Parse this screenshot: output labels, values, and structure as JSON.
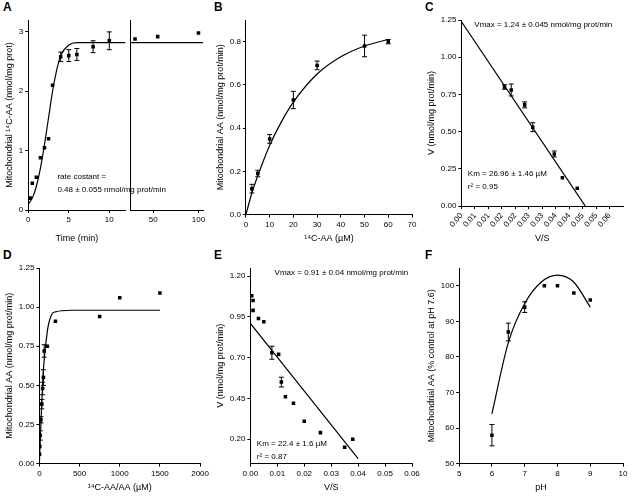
{
  "chart_data": [
    {
      "title": "A",
      "type": "scatter",
      "x_label": "Time (min)",
      "y_label": "Mitochondrial ¹⁴C-AA (nmol/mg prot)",
      "xlim": [
        0,
        12
      ],
      "xticks": [
        0,
        5,
        10
      ],
      "ylim": [
        0,
        3.2
      ],
      "yticks": [
        0,
        1,
        2,
        3
      ],
      "annotations": [
        "rate costant =",
        "0.48 ± 0.055 nmol/mg prot/min"
      ],
      "series": [
        {
          "type": "scatter",
          "marker": "square",
          "color": "#000000",
          "x": [
            0.25,
            0.5,
            1,
            1.5,
            2,
            2.5,
            3,
            4,
            5,
            6,
            8,
            10
          ],
          "values": [
            0.2,
            0.45,
            0.55,
            0.88,
            1.05,
            1.2,
            2.1,
            2.58,
            2.6,
            2.62,
            2.75,
            2.85
          ],
          "errors": [
            null,
            null,
            null,
            null,
            null,
            null,
            null,
            0.08,
            0.1,
            0.1,
            0.1,
            0.15
          ]
        },
        {
          "type": "line",
          "line_style": "solid",
          "color": "#000000",
          "x": [
            0,
            0.5,
            1,
            1.5,
            2,
            2.5,
            3,
            3.5,
            4,
            5,
            6,
            8,
            10,
            12
          ],
          "values": [
            0.1,
            0.2,
            0.4,
            0.7,
            1.1,
            1.55,
            2.0,
            2.35,
            2.6,
            2.78,
            2.82,
            2.82,
            2.82,
            2.82
          ]
        }
      ]
    },
    {
      "type": "scatter",
      "tick_labels": "x",
      "xlim": [
        25,
        105
      ],
      "xticks": [
        50,
        100
      ],
      "ylim": [
        0,
        3.2
      ],
      "series": [
        {
          "type": "scatter",
          "marker": "square",
          "color": "#000000",
          "x": [
            30,
            55,
            100
          ],
          "values": [
            2.88,
            2.92,
            2.98
          ]
        },
        {
          "type": "line",
          "line_style": "solid",
          "color": "#000000",
          "x": [
            25,
            105
          ],
          "values": [
            2.82,
            2.82
          ]
        }
      ]
    },
    {
      "title": "B",
      "type": "scatter",
      "x_label": "¹⁴C-AA (µM)",
      "y_label": "Mitochondrial AA (nmol/mg prot/min)",
      "xlim": [
        0,
        70
      ],
      "xticks": [
        0,
        10,
        20,
        30,
        40,
        50,
        60,
        70
      ],
      "ylim": [
        0,
        0.9
      ],
      "yticks": [
        {
          "value": 0,
          "label": "0.0"
        },
        0.2,
        0.4,
        0.6,
        0.8
      ],
      "series": [
        {
          "type": "scatter",
          "marker": "square",
          "color": "#000000",
          "x": [
            2.5,
            5,
            10,
            20,
            30,
            50,
            60
          ],
          "values": [
            0.12,
            0.19,
            0.35,
            0.53,
            0.69,
            0.78,
            0.8
          ],
          "errors": [
            0.02,
            0.015,
            0.02,
            0.04,
            0.02,
            0.05,
            0.01
          ]
        },
        {
          "type": "line",
          "line_style": "solid",
          "color": "#000000",
          "x": [
            0,
            2.5,
            5,
            10,
            15,
            20,
            30,
            40,
            50,
            60
          ],
          "values": [
            0,
            0.1,
            0.18,
            0.32,
            0.43,
            0.52,
            0.65,
            0.73,
            0.78,
            0.81
          ]
        }
      ]
    },
    {
      "title": "C",
      "type": "scatter",
      "x_label": "V/S",
      "y_label": "V (nmol/mg prot/min)",
      "xlim": [
        0,
        0.06
      ],
      "xticks": [
        {
          "value": 0,
          "label": "0.00"
        },
        {
          "value": 0.005,
          "label": "0.01"
        },
        {
          "value": 0.01,
          "label": "0.01"
        },
        {
          "value": 0.015,
          "label": "0.02"
        },
        {
          "value": 0.02,
          "label": "0.02"
        },
        {
          "value": 0.025,
          "label": "0.03"
        },
        {
          "value": 0.03,
          "label": "0.03"
        },
        {
          "value": 0.035,
          "label": "0.04"
        },
        {
          "value": 0.04,
          "label": "0.04"
        },
        {
          "value": 0.045,
          "label": "0.05"
        },
        {
          "value": 0.05,
          "label": "0.05"
        },
        {
          "value": 0.055,
          "label": "0.06"
        }
      ],
      "ylim": [
        0,
        1.25
      ],
      "yticks": [
        {
          "value": 0,
          "label": "0.00"
        },
        0.25,
        {
          "value": 0.5,
          "label": "0.50"
        },
        0.75,
        {
          "value": 1,
          "label": "1.00"
        },
        1.25
      ],
      "annotations": [
        "Vmax = 1.24 ± 0.045 nmol/mg prot/min",
        "Km = 26.96 ± 1.46 µM",
        "r² = 0.95"
      ],
      "series": [
        {
          "type": "scatter",
          "marker": "square",
          "color": "#000000",
          "x": [
            0.016,
            0.0185,
            0.0235,
            0.0265,
            0.0345,
            0.0375,
            0.043
          ],
          "values": [
            0.8,
            0.78,
            0.68,
            0.53,
            0.35,
            0.19,
            0.12
          ],
          "errors": [
            0.015,
            0.04,
            0.02,
            0.03,
            0.02,
            null,
            null
          ]
        },
        {
          "type": "line",
          "line_style": "solid",
          "color": "#000000",
          "x": [
            0,
            0.046
          ],
          "values": [
            1.24,
            0
          ]
        }
      ]
    },
    {
      "title": "D",
      "type": "scatter",
      "x_label": "¹⁴C-AA/AA (µM)",
      "y_label": "Mitochondrial AA (nmol/mg prot/min)",
      "xlim": [
        0,
        2000
      ],
      "xticks": [
        0,
        500,
        1000,
        1500,
        2000
      ],
      "ylim": [
        0,
        1.25
      ],
      "yticks": [
        {
          "value": 0,
          "label": "0.00"
        },
        0.25,
        {
          "value": 0.5,
          "label": "0.50"
        },
        0.75,
        {
          "value": 1,
          "label": "1.00"
        },
        1.25
      ],
      "series": [
        {
          "type": "scatter",
          "marker": "square",
          "color": "#000000",
          "x": [
            2.5,
            5,
            10,
            20,
            30,
            40,
            50,
            60,
            100,
            200,
            750,
            1000,
            1500
          ],
          "values": [
            0.06,
            0.11,
            0.18,
            0.28,
            0.38,
            0.48,
            0.55,
            0.72,
            0.75,
            0.91,
            0.94,
            1.06,
            1.09
          ],
          "errors": [
            null,
            null,
            0.03,
            0.02,
            0.03,
            0.04,
            0.05,
            0.04,
            null,
            null,
            null,
            null,
            null
          ]
        },
        {
          "type": "line",
          "line_style": "solid",
          "color": "#000000",
          "x": [
            0,
            25,
            50,
            100,
            150,
            200,
            400,
            1500
          ],
          "values": [
            0,
            0.33,
            0.6,
            0.85,
            0.95,
            0.97,
            0.98,
            0.98
          ]
        }
      ]
    },
    {
      "title": "E",
      "type": "scatter",
      "x_label": "V/S",
      "y_label": "V (nmol/mg prot/min)",
      "xlim": [
        0,
        0.06
      ],
      "xticks": [
        {
          "value": 0,
          "label": "0.00"
        },
        0.01,
        0.02,
        0.03,
        0.04,
        0.05,
        0.06
      ],
      "ylim": [
        0.05,
        1.25
      ],
      "yticks": [
        {
          "value": 0.2,
          "label": "0.20"
        },
        0.45,
        {
          "value": 0.7,
          "label": "0.70"
        },
        0.95,
        {
          "value": 1.2,
          "label": "1.20"
        }
      ],
      "annotations": [
        "Vmax = 0.91 ± 0.04 nmol/mg prot/min",
        "Km = 22.4 ± 1.6 µM",
        "r² = 0.87"
      ],
      "series": [
        {
          "type": "scatter",
          "marker": "square",
          "color": "#000000",
          "x": [
            0.0005,
            0.001,
            0.001,
            0.003,
            0.005,
            0.008,
            0.0105,
            0.0115,
            0.013,
            0.016,
            0.02,
            0.026,
            0.035,
            0.038
          ],
          "values": [
            1.08,
            1.05,
            0.99,
            0.94,
            0.92,
            0.73,
            0.72,
            0.55,
            0.46,
            0.42,
            0.31,
            0.24,
            0.15,
            0.2
          ],
          "errors": [
            null,
            null,
            null,
            null,
            null,
            0.04,
            null,
            0.03,
            null,
            null,
            null,
            null,
            null,
            null
          ]
        },
        {
          "type": "line",
          "line_style": "solid",
          "color": "#000000",
          "x": [
            0,
            0.04
          ],
          "values": [
            0.91,
            0.08
          ]
        }
      ]
    },
    {
      "title": "F",
      "type": "scatter",
      "x_label": "pH",
      "y_label": "Mitochondrial AA (% control at pH 7.6)",
      "xlim": [
        5,
        10
      ],
      "xticks": [
        5,
        6,
        7,
        8,
        9,
        10
      ],
      "ylim": [
        50,
        105
      ],
      "yticks": [
        50,
        60,
        70,
        80,
        90,
        100
      ],
      "series": [
        {
          "type": "scatter",
          "marker": "square",
          "color": "#000000",
          "x": [
            6,
            6.5,
            7,
            7.6,
            8,
            8.5,
            9
          ],
          "values": [
            58,
            87,
            94,
            100,
            100,
            98,
            96
          ],
          "errors": [
            3,
            2.5,
            1.5,
            null,
            null,
            null,
            null
          ]
        },
        {
          "type": "line",
          "line_style": "solid",
          "color": "#000000",
          "x": [
            6,
            6.5,
            7,
            7.5,
            8,
            8.5,
            9
          ],
          "values": [
            64,
            84,
            95,
            101,
            103,
            101,
            94
          ]
        }
      ]
    }
  ]
}
